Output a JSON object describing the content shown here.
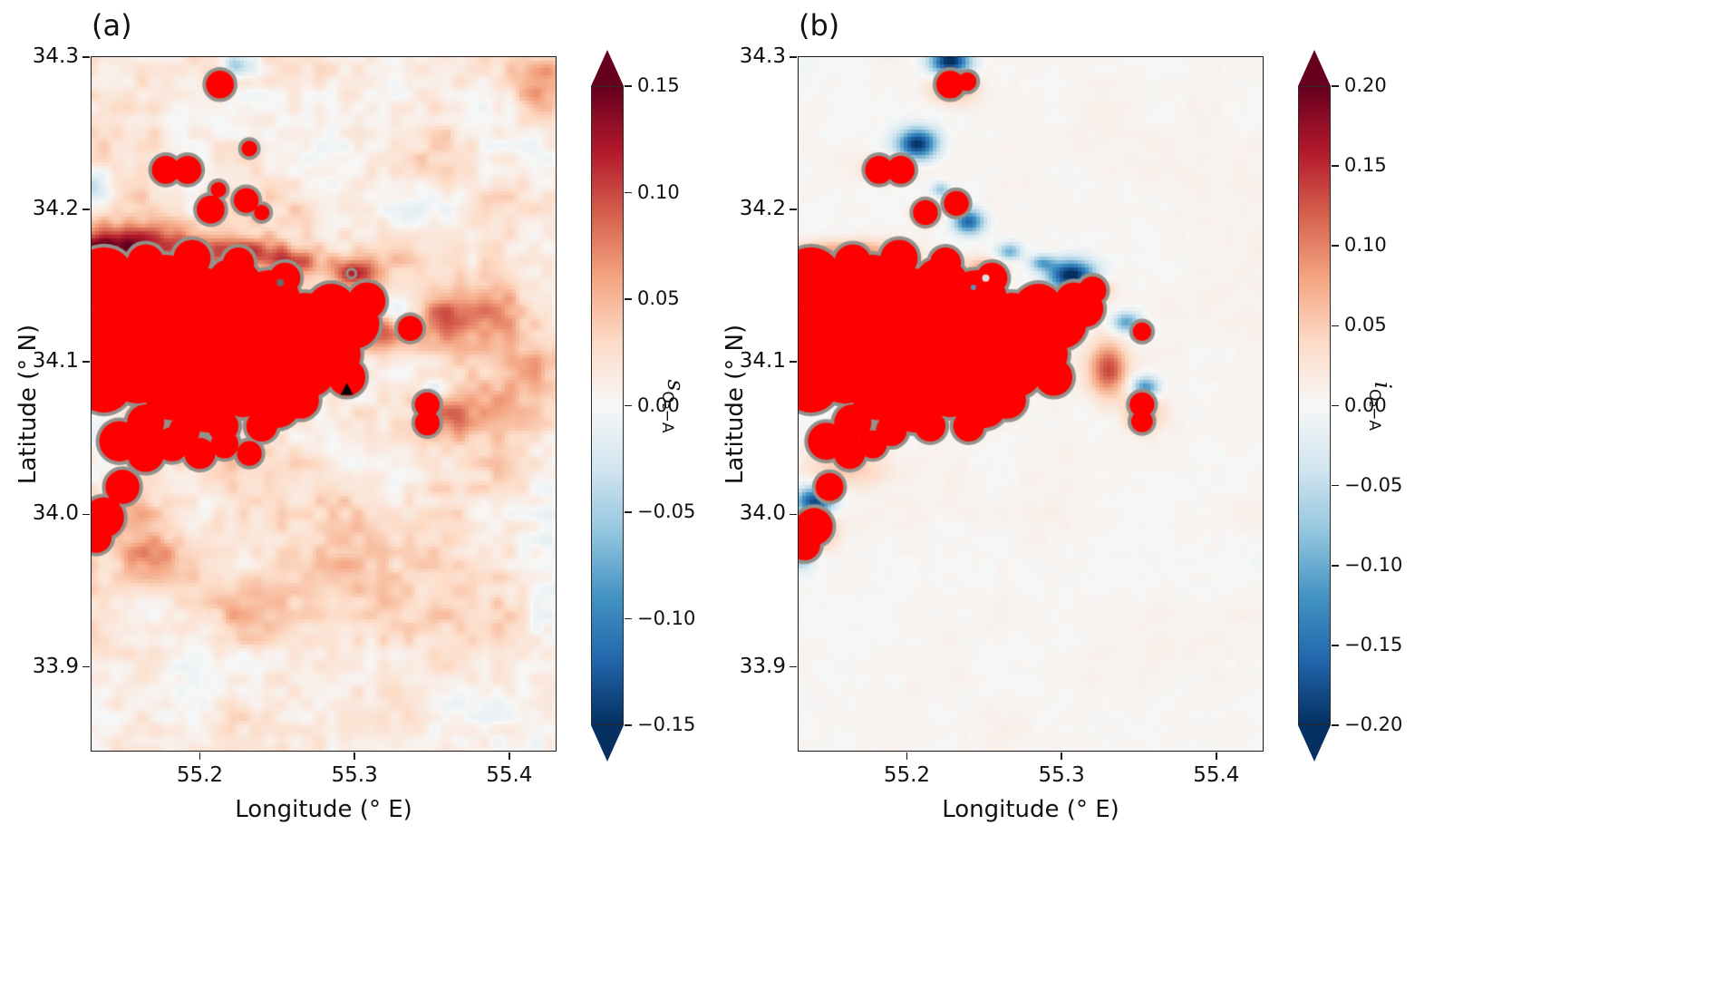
{
  "chart_data": {
    "type": "heatmap",
    "colormap": [
      [
        0,
        "#053061"
      ],
      [
        0.1,
        "#2166ac"
      ],
      [
        0.2,
        "#4393c3"
      ],
      [
        0.3,
        "#92c5de"
      ],
      [
        0.4,
        "#d1e5f0"
      ],
      [
        0.5,
        "#f7f7f7"
      ],
      [
        0.6,
        "#fddbc7"
      ],
      [
        0.7,
        "#f4a582"
      ],
      [
        0.8,
        "#d6604d"
      ],
      [
        0.9,
        "#b2182b"
      ],
      [
        1,
        "#67001f"
      ]
    ],
    "saturated_color": "#ff0000",
    "contour_color": "#94908a",
    "panels": [
      {
        "label": "(a)",
        "xlabel": "Longitude (° E)",
        "ylabel": "Latitude (° N)",
        "xlim": [
          55.13,
          55.43
        ],
        "ylim": [
          33.845,
          34.3
        ],
        "x_ticks": [
          55.2,
          55.3,
          55.4
        ],
        "x_tick_labels": [
          "55.2",
          "55.3",
          "55.4"
        ],
        "y_ticks": [
          33.9,
          34.0,
          34.1,
          34.2,
          34.3
        ],
        "y_tick_labels": [
          "33.9",
          "34.0",
          "34.1",
          "34.2",
          "34.3"
        ],
        "colorbar": {
          "varname": "s",
          "subscript": "O₂−A",
          "vmin": -0.15,
          "vmax": 0.15,
          "extend": "both",
          "ticks": [
            0.15,
            0.1,
            0.05,
            0.0,
            -0.05,
            -0.1,
            -0.15
          ],
          "tick_labels": [
            "0.15",
            "0.10",
            "0.05",
            "0.00",
            "−0.05",
            "−0.10",
            "−0.15"
          ]
        },
        "noise": {
          "seed": 11,
          "coarse_amp": 0.02,
          "fine_amp": 0.015,
          "bias": 0.016
        },
        "hotspots": [
          [
            55.16,
            34.176,
            0.045,
            0.014,
            0.12
          ],
          [
            55.135,
            34.158,
            0.018,
            0.02,
            0.11
          ],
          [
            55.23,
            34.172,
            0.028,
            0.01,
            0.09
          ],
          [
            55.262,
            34.165,
            0.018,
            0.008,
            0.07
          ],
          [
            55.3,
            34.158,
            0.014,
            0.01,
            0.1
          ],
          [
            55.318,
            34.12,
            0.016,
            0.014,
            0.08
          ],
          [
            55.352,
            34.128,
            0.022,
            0.018,
            0.05
          ],
          [
            55.385,
            34.135,
            0.03,
            0.022,
            0.045
          ],
          [
            55.4,
            34.095,
            0.03,
            0.028,
            0.04
          ],
          [
            55.42,
            34.285,
            0.022,
            0.018,
            0.055
          ],
          [
            55.363,
            34.065,
            0.018,
            0.014,
            0.05
          ],
          [
            55.16,
            34.0,
            0.02,
            0.015,
            0.05
          ],
          [
            55.17,
            33.975,
            0.02,
            0.012,
            0.04
          ],
          [
            55.3,
            33.985,
            0.05,
            0.04,
            0.02
          ],
          [
            55.225,
            33.945,
            0.05,
            0.03,
            0.025
          ],
          [
            55.133,
            34.215,
            0.012,
            0.01,
            -0.05
          ],
          [
            55.225,
            34.295,
            0.01,
            0.008,
            -0.07
          ],
          [
            55.33,
            34.133,
            0.012,
            0.008,
            -0.05
          ],
          [
            55.352,
            34.082,
            0.01,
            0.007,
            -0.04
          ]
        ],
        "saturated_blobs": [
          [
            55.138,
            34.155,
            0.02
          ],
          [
            55.138,
            34.115,
            0.022
          ],
          [
            55.138,
            34.085,
            0.018
          ],
          [
            55.158,
            34.135,
            0.022
          ],
          [
            55.16,
            34.095,
            0.022
          ],
          [
            55.178,
            34.15,
            0.02
          ],
          [
            55.18,
            34.115,
            0.024
          ],
          [
            55.182,
            34.08,
            0.018
          ],
          [
            55.2,
            34.14,
            0.022
          ],
          [
            55.202,
            34.105,
            0.024
          ],
          [
            55.205,
            34.07,
            0.016
          ],
          [
            55.222,
            34.15,
            0.018
          ],
          [
            55.225,
            34.115,
            0.024
          ],
          [
            55.228,
            34.08,
            0.016
          ],
          [
            55.245,
            34.14,
            0.02
          ],
          [
            55.248,
            34.105,
            0.022
          ],
          [
            55.25,
            34.072,
            0.015
          ],
          [
            55.268,
            34.125,
            0.02
          ],
          [
            55.27,
            34.095,
            0.018
          ],
          [
            55.285,
            34.135,
            0.016
          ],
          [
            55.288,
            34.105,
            0.016
          ],
          [
            55.3,
            34.125,
            0.016
          ],
          [
            55.308,
            34.14,
            0.012
          ],
          [
            55.295,
            34.09,
            0.012
          ],
          [
            55.165,
            34.165,
            0.012
          ],
          [
            55.195,
            34.168,
            0.012
          ],
          [
            55.225,
            34.165,
            0.01
          ],
          [
            55.255,
            34.155,
            0.01
          ],
          [
            55.165,
            34.06,
            0.012
          ],
          [
            55.19,
            34.055,
            0.01
          ],
          [
            55.215,
            34.058,
            0.01
          ],
          [
            55.24,
            34.058,
            0.01
          ],
          [
            55.265,
            34.075,
            0.012
          ],
          [
            55.148,
            34.048,
            0.013
          ],
          [
            55.165,
            34.04,
            0.012
          ],
          [
            55.182,
            34.046,
            0.011
          ],
          [
            55.2,
            34.04,
            0.01
          ],
          [
            55.216,
            34.046,
            0.009
          ],
          [
            55.232,
            34.04,
            0.008
          ],
          [
            55.15,
            34.018,
            0.011
          ],
          [
            55.138,
            33.998,
            0.013
          ],
          [
            55.133,
            33.985,
            0.01
          ],
          [
            55.213,
            34.282,
            0.009
          ],
          [
            55.178,
            34.226,
            0.009
          ],
          [
            55.192,
            34.226,
            0.009
          ],
          [
            55.207,
            34.2,
            0.009
          ],
          [
            55.212,
            34.213,
            0.005
          ],
          [
            55.23,
            34.206,
            0.008
          ],
          [
            55.232,
            34.24,
            0.005
          ],
          [
            55.24,
            34.198,
            0.005
          ],
          [
            55.336,
            34.122,
            0.008
          ],
          [
            55.347,
            34.072,
            0.008
          ],
          [
            55.347,
            34.06,
            0.008
          ]
        ],
        "marker": {
          "shape": "triangle",
          "x": 55.295,
          "y": 34.082,
          "color": "#000000"
        },
        "dots": [
          [
            55.252,
            34.152,
            "#6b6b6b",
            4
          ]
        ],
        "rings": [
          [
            55.298,
            34.158
          ]
        ]
      },
      {
        "label": "(b)",
        "xlabel": "Longitude (° E)",
        "ylabel": "Latitude (° N)",
        "xlim": [
          55.13,
          55.43
        ],
        "ylim": [
          33.845,
          34.3
        ],
        "x_ticks": [
          55.2,
          55.3,
          55.4
        ],
        "x_tick_labels": [
          "55.2",
          "55.3",
          "55.4"
        ],
        "y_ticks": [
          33.9,
          34.0,
          34.1,
          34.2,
          34.3
        ],
        "y_tick_labels": [
          "33.9",
          "34.0",
          "34.1",
          "34.2",
          "34.3"
        ],
        "colorbar": {
          "varname": "i",
          "subscript": "O₂−A",
          "vmin": -0.2,
          "vmax": 0.2,
          "extend": "both",
          "ticks": [
            0.2,
            0.15,
            0.1,
            0.05,
            0.0,
            -0.05,
            -0.1,
            -0.15,
            -0.2
          ],
          "tick_labels": [
            "0.20",
            "0.15",
            "0.10",
            "0.05",
            "0.00",
            "−0.05",
            "−0.10",
            "−0.15",
            "−0.20"
          ]
        },
        "noise": {
          "seed": 7,
          "coarse_amp": 0.006,
          "fine_amp": 0.005,
          "bias": 0.004
        },
        "hotspots": [
          [
            55.165,
            34.172,
            0.035,
            0.008,
            0.09
          ],
          [
            55.14,
            34.155,
            0.012,
            0.014,
            0.08
          ],
          [
            55.25,
            34.163,
            0.015,
            0.006,
            0.07
          ],
          [
            55.33,
            34.095,
            0.012,
            0.018,
            0.13
          ],
          [
            55.322,
            34.148,
            0.01,
            0.006,
            0.09
          ],
          [
            55.23,
            34.28,
            0.014,
            0.01,
            0.08
          ],
          [
            55.188,
            34.226,
            0.016,
            0.008,
            0.06
          ],
          [
            55.214,
            34.198,
            0.01,
            0.008,
            0.07
          ],
          [
            55.352,
            34.067,
            0.012,
            0.012,
            0.08
          ],
          [
            55.14,
            33.99,
            0.014,
            0.012,
            0.09
          ],
          [
            55.16,
            34.03,
            0.025,
            0.012,
            0.05
          ],
          [
            55.228,
            34.297,
            0.013,
            0.009,
            -0.22
          ],
          [
            55.207,
            34.243,
            0.013,
            0.01,
            -0.2
          ],
          [
            55.24,
            34.192,
            0.01,
            0.008,
            -0.16
          ],
          [
            55.266,
            34.172,
            0.008,
            0.006,
            -0.1
          ],
          [
            55.306,
            34.157,
            0.015,
            0.01,
            -0.22
          ],
          [
            55.287,
            34.165,
            0.008,
            0.005,
            -0.1
          ],
          [
            55.342,
            34.126,
            0.009,
            0.007,
            -0.12
          ],
          [
            55.354,
            34.083,
            0.009,
            0.007,
            -0.14
          ],
          [
            55.14,
            34.008,
            0.012,
            0.01,
            -0.2
          ],
          [
            55.131,
            33.972,
            0.009,
            0.008,
            -0.1
          ],
          [
            55.222,
            34.213,
            0.006,
            0.005,
            -0.08
          ]
        ],
        "saturated_blobs": [
          [
            55.138,
            34.155,
            0.02
          ],
          [
            55.138,
            34.115,
            0.022
          ],
          [
            55.138,
            34.085,
            0.018
          ],
          [
            55.158,
            34.135,
            0.022
          ],
          [
            55.16,
            34.095,
            0.022
          ],
          [
            55.178,
            34.15,
            0.02
          ],
          [
            55.18,
            34.115,
            0.024
          ],
          [
            55.182,
            34.08,
            0.018
          ],
          [
            55.2,
            34.14,
            0.022
          ],
          [
            55.202,
            34.105,
            0.024
          ],
          [
            55.205,
            34.07,
            0.016
          ],
          [
            55.222,
            34.15,
            0.018
          ],
          [
            55.225,
            34.115,
            0.024
          ],
          [
            55.228,
            34.08,
            0.016
          ],
          [
            55.245,
            34.14,
            0.02
          ],
          [
            55.248,
            34.105,
            0.022
          ],
          [
            55.25,
            34.072,
            0.015
          ],
          [
            55.268,
            34.125,
            0.02
          ],
          [
            55.27,
            34.095,
            0.018
          ],
          [
            55.285,
            34.135,
            0.016
          ],
          [
            55.288,
            34.105,
            0.016
          ],
          [
            55.3,
            34.125,
            0.016
          ],
          [
            55.308,
            34.14,
            0.012
          ],
          [
            55.295,
            34.09,
            0.012
          ],
          [
            55.315,
            34.135,
            0.012
          ],
          [
            55.32,
            34.147,
            0.009
          ],
          [
            55.165,
            34.165,
            0.012
          ],
          [
            55.195,
            34.168,
            0.012
          ],
          [
            55.225,
            34.165,
            0.01
          ],
          [
            55.255,
            34.155,
            0.01
          ],
          [
            55.165,
            34.06,
            0.012
          ],
          [
            55.19,
            34.055,
            0.01
          ],
          [
            55.215,
            34.058,
            0.01
          ],
          [
            55.24,
            34.058,
            0.01
          ],
          [
            55.265,
            34.075,
            0.012
          ],
          [
            55.148,
            34.048,
            0.012
          ],
          [
            55.163,
            34.04,
            0.01
          ],
          [
            55.178,
            34.046,
            0.009
          ],
          [
            55.15,
            34.018,
            0.009
          ],
          [
            55.14,
            33.992,
            0.012
          ],
          [
            55.134,
            33.98,
            0.01
          ],
          [
            55.228,
            34.282,
            0.009
          ],
          [
            55.239,
            34.284,
            0.006
          ],
          [
            55.182,
            34.226,
            0.009
          ],
          [
            55.196,
            34.226,
            0.009
          ],
          [
            55.212,
            34.198,
            0.008
          ],
          [
            55.232,
            34.204,
            0.008
          ],
          [
            55.352,
            34.12,
            0.006
          ],
          [
            55.352,
            34.072,
            0.008
          ],
          [
            55.352,
            34.061,
            0.007
          ]
        ],
        "marker": null,
        "dots": [
          [
            55.251,
            34.155,
            "#e0e0e0",
            4
          ],
          [
            55.243,
            34.149,
            "#5b8fbe",
            3
          ]
        ],
        "rings": []
      }
    ]
  }
}
